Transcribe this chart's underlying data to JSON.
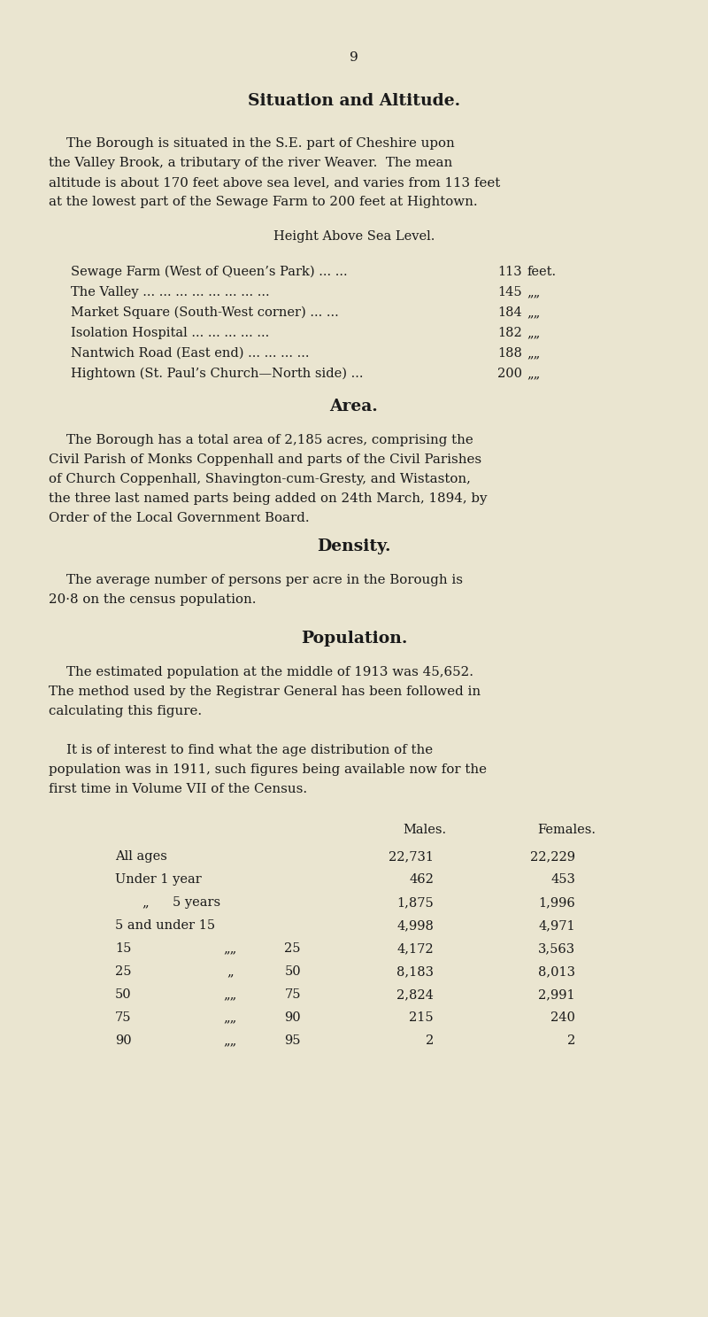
{
  "bg_color": "#EAE5D0",
  "text_color": "#1a1a1a",
  "page_number": "9",
  "title": "Situation and Altitude.",
  "para1_line1": "The Borough is situated in the S.E. part of Cheshire upon",
  "para1_line2": "the Valley Brook, a tributary of the river Weaver.  The mean",
  "para1_line3": "altitude is about 170 feet above sea level, and varies from 113 feet",
  "para1_line4": "at the lowest part of the Sewage Farm to 200 feet at Hightown.",
  "subtitle_height": "Height Above Sea Level.",
  "height_rows": [
    [
      "Sewage Farm (West of Queen’s Park) ... ...",
      "113",
      "feet."
    ],
    [
      "The Valley ... ... ... ... ... ... ... ...",
      "145",
      "„„"
    ],
    [
      "Market Square (South-West corner) ... ...",
      "184",
      "„„"
    ],
    [
      "Isolation Hospital ... ... ... ... ...",
      "182",
      "„„"
    ],
    [
      "Nantwich Road (East end) ... ... ... ...",
      "188",
      "„„"
    ],
    [
      "Hightown (St. Paul’s Church—North side) ...",
      "200",
      "„„"
    ]
  ],
  "section_area_title": "Area.",
  "para_area_line1": "The Borough has a total area of 2,185 acres, comprising the",
  "para_area_line2": "Civil Parish of Monks Coppenhall and parts of the Civil Parishes",
  "para_area_line3": "of Church Coppenhall, Shavington-cum-Gresty, and Wistaston,",
  "para_area_line4": "the three last named parts being added on 24th March, 1894, by",
  "para_area_line5": "Order of the Local Government Board.",
  "section_density_title": "Density.",
  "para_density_line1": "The average number of persons per acre in the Borough is",
  "para_density_line2": "20·8 on the census population.",
  "section_pop_title": "Population.",
  "para_pop1_line1": "The estimated population at the middle of 1913 was 45,652.",
  "para_pop1_line2": "The method used by the Registrar General has been followed in",
  "para_pop1_line3": "calculating this figure.",
  "para_pop2_line1": "It is of interest to find what the age distribution of the",
  "para_pop2_line2": "population was in 1911, such figures being available now for the",
  "para_pop2_line3": "first time in Volume VII of the Census.",
  "males_header": "Males.",
  "females_header": "Females.",
  "pop_rows": [
    {
      "label1": "All ages",
      "sep": "",
      "label2": "",
      "males": "22,731",
      "females": "22,229"
    },
    {
      "label1": "Under 1 year",
      "sep": "",
      "label2": "",
      "males": "462",
      "females": "453"
    },
    {
      "label1": "„",
      "sep": "",
      "label2": "5 years",
      "males": "1,875",
      "females": "1,996"
    },
    {
      "label1": "5 and under 15",
      "sep": "",
      "label2": "",
      "males": "4,998",
      "females": "4,971"
    },
    {
      "label1": "15",
      "sep": "„„",
      "label2": "25",
      "males": "4,172",
      "females": "3,563"
    },
    {
      "label1": "25",
      "sep": "„",
      "label2": "50",
      "males": "8,183",
      "females": "8,013"
    },
    {
      "label1": "50",
      "sep": "„„",
      "label2": "75",
      "males": "2,824",
      "females": "2,991"
    },
    {
      "label1": "75",
      "sep": "„„",
      "label2": "90",
      "males": "215",
      "females": "240"
    },
    {
      "label1": "90",
      "sep": "„„",
      "label2": "95",
      "males": "2",
      "females": "2"
    }
  ]
}
